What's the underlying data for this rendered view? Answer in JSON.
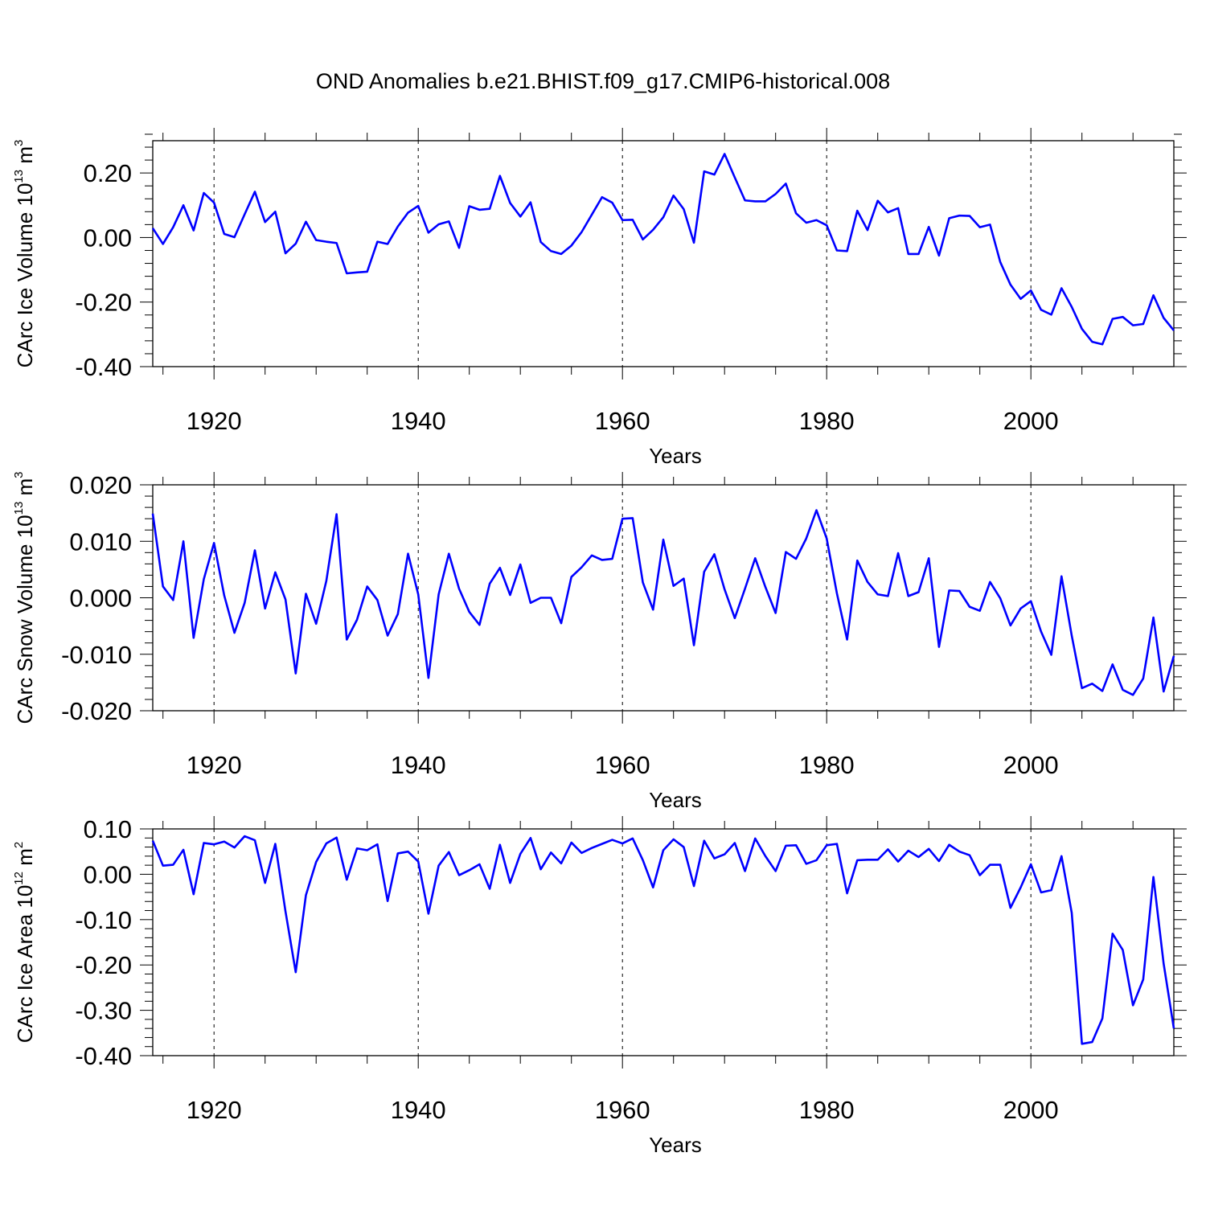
{
  "chart_data": {
    "title": "OND Anomalies b.e21.BHIST.f09_g17.CMIP6-historical.008",
    "type": "line",
    "line_color": "#0000ff",
    "x_start": 1914,
    "xlim": [
      1914,
      2014
    ],
    "xticks": [
      1920,
      1940,
      1960,
      1980,
      2000
    ],
    "panels": [
      {
        "name": "ice-volume",
        "ylabel_main": "CArc Ice Volume 10",
        "ylabel_exp": "13",
        "ylabel_unit": " m",
        "ylabel_unit_exp": "3",
        "xlabel": "Years",
        "ylim": [
          -0.4,
          0.3
        ],
        "yticks": [
          0.2,
          0.0,
          -0.2,
          -0.4
        ],
        "ytick_labels": [
          "0.20",
          "0.00",
          "-0.20",
          "-0.40"
        ],
        "values": [
          0.029,
          -0.02,
          0.032,
          0.1,
          0.022,
          0.138,
          0.108,
          0.011,
          0.001,
          0.072,
          0.142,
          0.048,
          0.08,
          -0.049,
          -0.019,
          0.049,
          -0.008,
          -0.013,
          -0.017,
          -0.111,
          -0.108,
          -0.106,
          -0.013,
          -0.02,
          0.034,
          0.077,
          0.098,
          0.015,
          0.041,
          0.05,
          -0.032,
          0.097,
          0.086,
          0.089,
          0.191,
          0.107,
          0.065,
          0.109,
          -0.014,
          -0.042,
          -0.051,
          -0.025,
          0.017,
          0.071,
          0.125,
          0.108,
          0.054,
          0.055,
          -0.006,
          0.024,
          0.063,
          0.13,
          0.088,
          -0.016,
          0.205,
          0.195,
          0.259,
          0.186,
          0.115,
          0.112,
          0.112,
          0.135,
          0.167,
          0.075,
          0.046,
          0.054,
          0.038,
          -0.04,
          -0.042,
          0.083,
          0.023,
          0.114,
          0.078,
          0.091,
          -0.051,
          -0.051,
          0.033,
          -0.056,
          0.06,
          0.068,
          0.067,
          0.032,
          0.04,
          -0.076,
          -0.146,
          -0.19,
          -0.164,
          -0.224,
          -0.239,
          -0.157,
          -0.215,
          -0.283,
          -0.323,
          -0.331,
          -0.252,
          -0.246,
          -0.272,
          -0.268,
          -0.179,
          -0.249,
          -0.288
        ]
      },
      {
        "name": "snow-volume",
        "ylabel_main": "CArc Snow Volume 10",
        "ylabel_exp": "13",
        "ylabel_unit": " m",
        "ylabel_unit_exp": "3",
        "xlabel": "Years",
        "ylim": [
          -0.02,
          0.02
        ],
        "yticks": [
          0.02,
          0.01,
          0.0,
          -0.01,
          -0.02
        ],
        "ytick_labels": [
          "0.020",
          "0.010",
          "0.000",
          "-0.010",
          "-0.020"
        ],
        "values": [
          0.0149,
          0.002,
          -0.0004,
          0.01,
          -0.0071,
          0.0033,
          0.0097,
          0.0004,
          -0.0062,
          -0.0009,
          0.0084,
          -0.0019,
          0.0045,
          -0.0003,
          -0.0134,
          0.0007,
          -0.0046,
          0.003,
          0.0148,
          -0.0074,
          -0.0039,
          0.002,
          -0.0004,
          -0.0067,
          -0.0029,
          0.0078,
          0.0006,
          -0.0142,
          0.0006,
          0.0078,
          0.0016,
          -0.0025,
          -0.0048,
          0.0025,
          0.0053,
          0.0005,
          0.0059,
          -0.0009,
          0.0,
          0.0,
          -0.0045,
          0.0037,
          0.0054,
          0.0075,
          0.0067,
          0.0069,
          0.014,
          0.0141,
          0.0027,
          -0.0021,
          0.0103,
          0.0021,
          0.0034,
          -0.0084,
          0.0046,
          0.0077,
          0.0015,
          -0.0036,
          0.0016,
          0.007,
          0.0019,
          -0.0027,
          0.0081,
          0.0069,
          0.0105,
          0.0155,
          0.0105,
          0.0008,
          -0.0074,
          0.0066,
          0.0028,
          0.0006,
          0.0003,
          0.0079,
          0.0003,
          0.001,
          0.007,
          -0.0087,
          0.0013,
          0.0012,
          -0.0016,
          -0.0023,
          0.0028,
          -0.0001,
          -0.0049,
          -0.0019,
          -0.0006,
          -0.006,
          -0.0101,
          0.0038,
          -0.0067,
          -0.016,
          -0.0152,
          -0.0165,
          -0.0118,
          -0.0163,
          -0.0172,
          -0.0143,
          -0.0035,
          -0.0166,
          -0.0103
        ]
      },
      {
        "name": "ice-area",
        "ylabel_main": "CArc Ice Area 10",
        "ylabel_exp": "12",
        "ylabel_unit": " m",
        "ylabel_unit_exp": "2",
        "xlabel": "Years",
        "ylim": [
          -0.4,
          0.1
        ],
        "yticks": [
          0.1,
          0.0,
          -0.1,
          -0.2,
          -0.3,
          -0.4
        ],
        "ytick_labels": [
          "0.10",
          "0.00",
          "-0.10",
          "-0.20",
          "-0.30",
          "-0.40"
        ],
        "values": [
          0.074,
          0.019,
          0.021,
          0.054,
          -0.044,
          0.069,
          0.066,
          0.072,
          0.059,
          0.084,
          0.075,
          -0.019,
          0.067,
          -0.082,
          -0.216,
          -0.046,
          0.027,
          0.068,
          0.081,
          -0.012,
          0.057,
          0.053,
          0.066,
          -0.059,
          0.046,
          0.05,
          0.028,
          -0.087,
          0.019,
          0.049,
          -0.002,
          0.009,
          0.022,
          -0.032,
          0.065,
          -0.019,
          0.045,
          0.08,
          0.011,
          0.048,
          0.024,
          0.07,
          0.047,
          0.058,
          0.067,
          0.076,
          0.068,
          0.079,
          0.031,
          -0.029,
          0.053,
          0.077,
          0.06,
          -0.026,
          0.074,
          0.035,
          0.044,
          0.069,
          0.007,
          0.079,
          0.04,
          0.007,
          0.063,
          0.064,
          0.023,
          0.031,
          0.064,
          0.067,
          -0.042,
          0.031,
          0.032,
          0.032,
          0.055,
          0.028,
          0.052,
          0.038,
          0.056,
          0.029,
          0.065,
          0.05,
          0.042,
          -0.002,
          0.021,
          0.021,
          -0.074,
          -0.029,
          0.022,
          -0.04,
          -0.035,
          0.04,
          -0.085,
          -0.374,
          -0.37,
          -0.318,
          -0.131,
          -0.167,
          -0.289,
          -0.232,
          -0.006,
          -0.197,
          -0.34
        ]
      }
    ]
  }
}
